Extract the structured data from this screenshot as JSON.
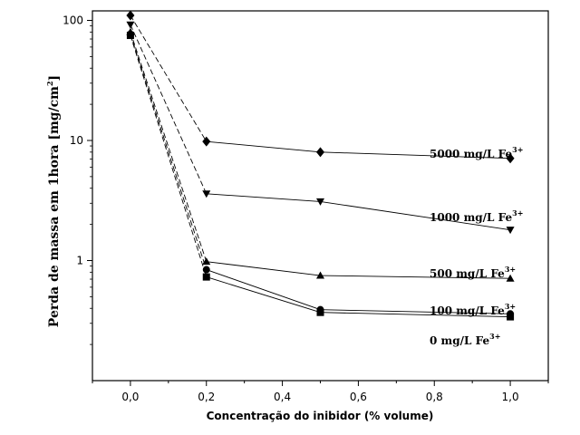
{
  "chart_data": {
    "type": "line",
    "xlabel": "Concentração do inibidor (% volume)",
    "ylabel_main": "Perda de massa em 1hora [mg/cm",
    "ylabel_sup": "2",
    "ylabel_tail": "]",
    "xlim": [
      -0.1,
      1.1
    ],
    "ylim": [
      0.1,
      120
    ],
    "yscale": "log",
    "x_ticks": [
      0.0,
      0.2,
      0.4,
      0.6,
      0.8,
      1.0
    ],
    "x_tick_labels": [
      "0,0",
      "0,2",
      "0,4",
      "0,6",
      "0,8",
      "1,0"
    ],
    "y_ticks": [
      1,
      10,
      100
    ],
    "y_tick_labels": [
      "1",
      "10",
      "100"
    ],
    "grid": false,
    "series": [
      {
        "name": "5000 mg/L Fe",
        "sup": "3+",
        "marker": "diamond",
        "x": [
          0.0,
          0.2,
          0.5,
          1.0
        ],
        "values": [
          110,
          9.8,
          8.0,
          7.1
        ]
      },
      {
        "name": "1000 mg/L Fe",
        "sup": "3+",
        "marker": "triangle-down",
        "x": [
          0.0,
          0.2,
          0.5,
          1.0
        ],
        "values": [
          92,
          3.6,
          3.1,
          1.8
        ]
      },
      {
        "name": "500 mg/L Fe",
        "sup": "3+",
        "marker": "triangle-up",
        "x": [
          0.0,
          0.2,
          0.5,
          1.0
        ],
        "values": [
          80,
          0.98,
          0.75,
          0.71
        ]
      },
      {
        "name": "100 mg/L Fe",
        "sup": "3+",
        "marker": "circle",
        "x": [
          0.0,
          0.2,
          0.5,
          1.0
        ],
        "values": [
          77,
          0.84,
          0.39,
          0.36
        ]
      },
      {
        "name": "0 mg/L Fe",
        "sup": "3+",
        "marker": "square",
        "x": [
          0.0,
          0.2,
          0.5,
          1.0
        ],
        "values": [
          75,
          0.73,
          0.37,
          0.34
        ]
      }
    ]
  }
}
